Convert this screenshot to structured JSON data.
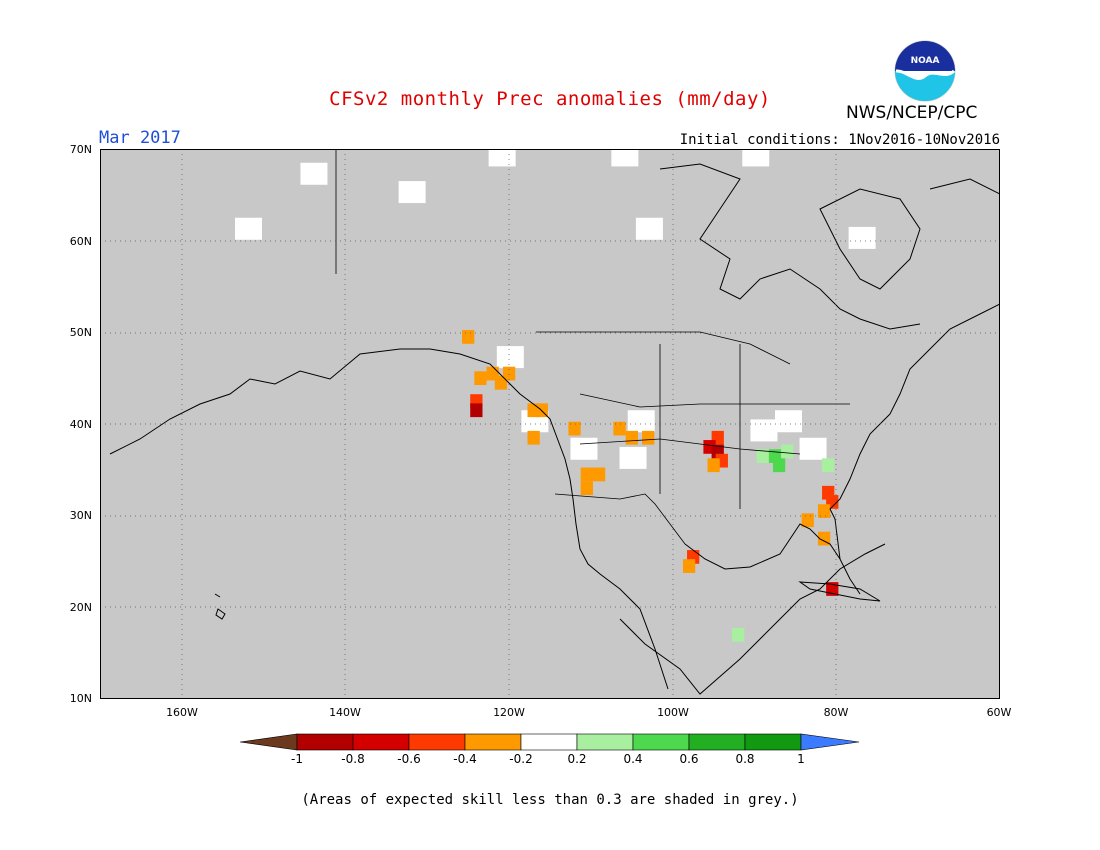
{
  "header": {
    "title": "CFSv2 monthly Prec anomalies (mm/day)",
    "organization": "NWS/NCEP/CPC",
    "period": "Mar 2017",
    "initial_conditions": "Initial conditions: 1Nov2016-10Nov2016",
    "logo_text": "NOAA"
  },
  "map": {
    "projection": "lat-lon",
    "lon_range": [
      -170,
      -60
    ],
    "lat_range": [
      10,
      70
    ],
    "background_color": "#c8c8c8",
    "grid": true,
    "y_ticks": [
      "70N",
      "60N",
      "50N",
      "40N",
      "30N",
      "20N",
      "10N"
    ],
    "x_ticks": [
      "160W",
      "140W",
      "120W",
      "100W",
      "80W",
      "60W"
    ]
  },
  "colorbar": {
    "labels": [
      "-1",
      "-0.8",
      "-0.6",
      "-0.4",
      "-0.2",
      "0.2",
      "0.4",
      "0.6",
      "0.8",
      "1"
    ],
    "colors": [
      "#6b3a1e",
      "#b20000",
      "#d40000",
      "#ff3a00",
      "#ff9900",
      "#ffffff",
      "#a8f0a0",
      "#4ed84e",
      "#22b022",
      "#119911",
      "#3b7bff"
    ]
  },
  "anomaly_cells": [
    {
      "lon": -125,
      "lat": 49.5,
      "value": -0.3
    },
    {
      "lon": -123.5,
      "lat": 45,
      "value": -0.3
    },
    {
      "lon": -122,
      "lat": 45.5,
      "value": -0.3
    },
    {
      "lon": -121,
      "lat": 44.5,
      "value": -0.3
    },
    {
      "lon": -120,
      "lat": 45.5,
      "value": -0.3
    },
    {
      "lon": -124,
      "lat": 42.5,
      "value": -0.5
    },
    {
      "lon": -124,
      "lat": 41.5,
      "value": -0.9
    },
    {
      "lon": -117,
      "lat": 41.5,
      "value": -0.3
    },
    {
      "lon": -116,
      "lat": 41.5,
      "value": -0.3
    },
    {
      "lon": -117,
      "lat": 38.5,
      "value": -0.3
    },
    {
      "lon": -112,
      "lat": 39.5,
      "value": -0.3
    },
    {
      "lon": -106.5,
      "lat": 39.5,
      "value": -0.3
    },
    {
      "lon": -105,
      "lat": 38.5,
      "value": -0.3
    },
    {
      "lon": -110.5,
      "lat": 34.5,
      "value": -0.3
    },
    {
      "lon": -109,
      "lat": 34.5,
      "value": -0.3
    },
    {
      "lon": -110.5,
      "lat": 33,
      "value": -0.3
    },
    {
      "lon": -103,
      "lat": 38.5,
      "value": -0.3
    },
    {
      "lon": -94.5,
      "lat": 38.5,
      "value": -0.5
    },
    {
      "lon": -95.5,
      "lat": 37.5,
      "value": -0.7
    },
    {
      "lon": -94.5,
      "lat": 37,
      "value": -0.9
    },
    {
      "lon": -94,
      "lat": 36,
      "value": -0.5
    },
    {
      "lon": -95,
      "lat": 35.5,
      "value": -0.3
    },
    {
      "lon": -81,
      "lat": 32.5,
      "value": -0.5
    },
    {
      "lon": -80.5,
      "lat": 31.5,
      "value": -0.5
    },
    {
      "lon": -81.5,
      "lat": 30.5,
      "value": -0.3
    },
    {
      "lon": -81.5,
      "lat": 27.5,
      "value": -0.3
    },
    {
      "lon": -83.5,
      "lat": 29.5,
      "value": -0.3
    },
    {
      "lon": -97.5,
      "lat": 25.5,
      "value": -0.5
    },
    {
      "lon": -98,
      "lat": 24.5,
      "value": -0.3
    },
    {
      "lon": -80.5,
      "lat": 22,
      "value": -0.7
    },
    {
      "lon": -89,
      "lat": 36.5,
      "value": 0.3
    },
    {
      "lon": -87.5,
      "lat": 36.5,
      "value": 0.5
    },
    {
      "lon": -86,
      "lat": 37,
      "value": 0.3
    },
    {
      "lon": -87,
      "lat": 35.5,
      "value": 0.5
    },
    {
      "lon": -81,
      "lat": 35.5,
      "value": 0.3
    },
    {
      "lon": -92,
      "lat": 17,
      "value": 0.3
    }
  ],
  "low_skill_white_areas": [
    {
      "lon": -152,
      "lat": 61
    },
    {
      "lon": -144,
      "lat": 67
    },
    {
      "lon": -132,
      "lat": 65
    },
    {
      "lon": -121,
      "lat": 69
    },
    {
      "lon": -106,
      "lat": 69
    },
    {
      "lon": -103,
      "lat": 61
    },
    {
      "lon": -90,
      "lat": 69
    },
    {
      "lon": -77,
      "lat": 60
    },
    {
      "lon": -120,
      "lat": 47
    },
    {
      "lon": -117,
      "lat": 40
    },
    {
      "lon": -111,
      "lat": 37
    },
    {
      "lon": -105,
      "lat": 36
    },
    {
      "lon": -104,
      "lat": 40
    },
    {
      "lon": -89,
      "lat": 39
    },
    {
      "lon": -86,
      "lat": 40
    },
    {
      "lon": -83,
      "lat": 37
    }
  ],
  "footnote": "(Areas of expected skill less than 0.3 are shaded in grey.)"
}
